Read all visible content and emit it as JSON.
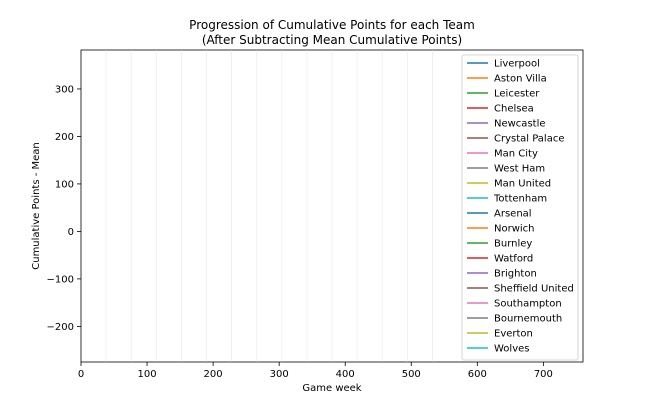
{
  "chart_data": {
    "type": "line",
    "title": "Progression of Cumulative Points for each Team",
    "subtitle": "(After Subtracting Mean Cumulative Points)",
    "xlabel": "Game week",
    "ylabel": "Cumulative Points - Mean",
    "xlim": [
      0,
      760
    ],
    "ylim": [
      -275,
      382
    ],
    "x_ticks": [
      0,
      100,
      200,
      300,
      400,
      500,
      600,
      700
    ],
    "y_ticks": [
      -200,
      -100,
      0,
      100,
      200,
      300
    ],
    "vertical_reference_lines": [
      38,
      76,
      114,
      152,
      190,
      228,
      266,
      304,
      342,
      380,
      418,
      456,
      494,
      532
    ],
    "legend_position": "upper-right",
    "grid": false,
    "series": [
      {
        "name": "Liverpool",
        "color": "#1f77b4",
        "values": []
      },
      {
        "name": "Aston Villa",
        "color": "#ff7f0e",
        "values": []
      },
      {
        "name": "Leicester",
        "color": "#2ca02c",
        "values": []
      },
      {
        "name": "Chelsea",
        "color": "#d62728",
        "values": []
      },
      {
        "name": "Newcastle",
        "color": "#9467bd",
        "values": []
      },
      {
        "name": "Crystal Palace",
        "color": "#8c564b",
        "values": []
      },
      {
        "name": "Man City",
        "color": "#e377c2",
        "values": []
      },
      {
        "name": "West Ham",
        "color": "#7f7f7f",
        "values": []
      },
      {
        "name": "Man United",
        "color": "#bcbd22",
        "values": []
      },
      {
        "name": "Tottenham",
        "color": "#17becf",
        "values": []
      },
      {
        "name": "Arsenal",
        "color": "#1f77b4",
        "values": []
      },
      {
        "name": "Norwich",
        "color": "#ff7f0e",
        "values": []
      },
      {
        "name": "Burnley",
        "color": "#2ca02c",
        "values": []
      },
      {
        "name": "Watford",
        "color": "#d62728",
        "values": []
      },
      {
        "name": "Brighton",
        "color": "#9467bd",
        "values": []
      },
      {
        "name": "Sheffield United",
        "color": "#8c564b",
        "values": []
      },
      {
        "name": "Southampton",
        "color": "#e377c2",
        "values": []
      },
      {
        "name": "Bournemouth",
        "color": "#7f7f7f",
        "values": []
      },
      {
        "name": "Everton",
        "color": "#bcbd22",
        "values": []
      },
      {
        "name": "Wolves",
        "color": "#17becf",
        "values": []
      }
    ]
  }
}
